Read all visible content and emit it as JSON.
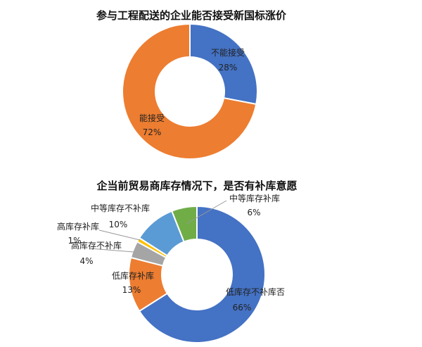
{
  "chart_data": [
    {
      "type": "pie",
      "donut": true,
      "title": "参与工程配送的企业能否接受新国标涨价",
      "slices": [
        {
          "name": "不能接受",
          "value": 28,
          "label": "28%",
          "color": "#4472C4"
        },
        {
          "name": "能接受",
          "value": 72,
          "label": "72%",
          "color": "#ED7D31"
        }
      ]
    },
    {
      "type": "pie",
      "donut": true,
      "title": "企当前贸易商库存情况下，是否有补库意愿",
      "slices": [
        {
          "name": "低库存不补库否",
          "value": 66,
          "label": "66%",
          "color": "#4472C4"
        },
        {
          "name": "低库存补库",
          "value": 13,
          "label": "13%",
          "color": "#ED7D31"
        },
        {
          "name": "高库存不补库",
          "value": 4,
          "label": "4%",
          "color": "#A5A5A5"
        },
        {
          "name": "高库存补库",
          "value": 1,
          "label": "1%",
          "color": "#FFC000"
        },
        {
          "name": "中等库存不补库",
          "value": 10,
          "label": "10%",
          "color": "#5B9BD5"
        },
        {
          "name": "中等库存补库",
          "value": 6,
          "label": "6%",
          "color": "#70AD47"
        }
      ]
    }
  ]
}
